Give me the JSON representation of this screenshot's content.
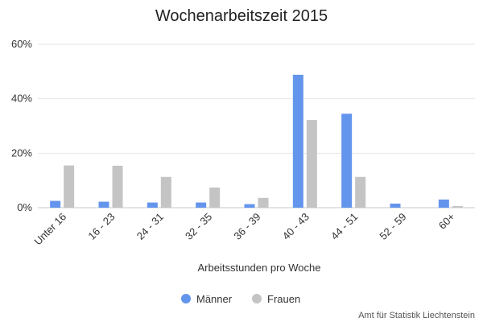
{
  "chart_data": {
    "type": "bar",
    "title": "Wochenarbeitszeit 2015",
    "xlabel": "Arbeitsstunden pro Woche",
    "ylabel": "",
    "categories": [
      "Unter 16",
      "16 - 23",
      "24 - 31",
      "32 - 35",
      "36 - 39",
      "40 - 43",
      "44 - 51",
      "52 - 59",
      "60+"
    ],
    "series": [
      {
        "name": "Männer",
        "color": "#6495ED",
        "values": [
          2.5,
          2.2,
          1.9,
          1.9,
          1.3,
          48.8,
          34.5,
          1.5,
          3.0
        ]
      },
      {
        "name": "Frauen",
        "color": "#C4C4C4",
        "values": [
          15.5,
          15.4,
          11.3,
          7.4,
          3.6,
          32.2,
          11.3,
          0.1,
          0.6
        ]
      }
    ],
    "ylim": [
      0,
      60
    ],
    "yticks": [
      "0%",
      "20%",
      "40%",
      "60%"
    ],
    "grid": true,
    "legend": "bottom-center",
    "credit": "Amt für Statistik Liechtenstein"
  }
}
